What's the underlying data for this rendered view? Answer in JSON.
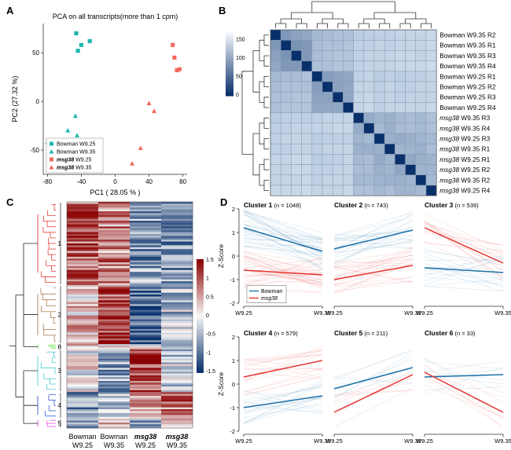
{
  "panels": {
    "A": "A",
    "B": "B",
    "C": "C",
    "D": "D"
  },
  "chart_data": [
    {
      "panel": "A",
      "type": "scatter",
      "title": "PCA on all transcripts(more than 1 cpm)",
      "xlabel": "PC1 ( 28.05 % )",
      "ylabel": "PC2 (27.32 %)",
      "xlim": [
        -85,
        85
      ],
      "ylim": [
        -75,
        80
      ],
      "xticks": [
        "-80",
        "-40",
        "0",
        "40",
        "80"
      ],
      "yticks": [
        "50",
        "0",
        "-50"
      ],
      "colors": {
        "Bowman": "#1fb6b0",
        "msg38": "#f0695c"
      },
      "series": [
        {
          "name": "Bowman W9.25",
          "marker": "square",
          "color": "#1fb6b0",
          "points": [
            [
              -46,
              70
            ],
            [
              -40,
              58
            ],
            [
              -30,
              62
            ],
            [
              -44,
              52
            ]
          ]
        },
        {
          "name": "Bowman W9.35",
          "marker": "triangle",
          "color": "#1fb6b0",
          "points": [
            [
              -47,
              -15
            ],
            [
              -56,
              -30
            ],
            [
              -80,
              -42
            ],
            [
              -45,
              -35
            ]
          ]
        },
        {
          "name": "msg38 W9.25",
          "marker": "square",
          "color": "#f0695c",
          "points": [
            [
              68,
              58
            ],
            [
              70,
              45
            ],
            [
              73,
              32
            ],
            [
              76,
              33
            ]
          ]
        },
        {
          "name": "msg38 W9.35",
          "marker": "triangle",
          "color": "#f0695c",
          "points": [
            [
              40,
              -2
            ],
            [
              46,
              -10
            ],
            [
              30,
              -48
            ],
            [
              20,
              -64
            ]
          ]
        }
      ]
    },
    {
      "panel": "B",
      "type": "heatmap",
      "rows": [
        "Bowman W9.35 R2",
        "Bowman W9.35 R1",
        "Bowman W9.35 R3",
        "Bowman W9.35 R4",
        "Bowman W9.25 R1",
        "Bowman W9.25 R2",
        "Bowman W9.25 R3",
        "Bowman W9.25 R4",
        "msg38 W9.35 R3",
        "msg38 W9.35 R4",
        "msg38 W9.25 R3",
        "msg38 W9.35 R1",
        "msg38 W9.25 R1",
        "msg38 W9.25 R2",
        "msg38 W9.35 R2",
        "msg38 W9.25 R4"
      ],
      "row_prefix": [
        "Bowman",
        "Bowman",
        "Bowman",
        "Bowman",
        "Bowman",
        "Bowman",
        "Bowman",
        "Bowman",
        "msg38",
        "msg38",
        "msg38",
        "msg38",
        "msg38",
        "msg38",
        "msg38",
        "msg38"
      ],
      "row_suffix": [
        "W9.35 R2",
        "W9.35 R1",
        "W9.35 R3",
        "W9.35 R4",
        "W9.25 R1",
        "W9.25 R2",
        "W9.25 R3",
        "W9.25 R4",
        "W9.35 R3",
        "W9.35 R4",
        "W9.25 R3",
        "W9.35 R1",
        "W9.25 R1",
        "W9.25 R2",
        "W9.35 R2",
        "W9.25 R4"
      ],
      "colorbar_ticks": [
        "150",
        "100",
        "50",
        "0"
      ],
      "colorbar_range": [
        0,
        170
      ],
      "color_low": "#08306b",
      "color_high": "#f7fbff",
      "values": [
        [
          0,
          55,
          65,
          70,
          90,
          95,
          100,
          100,
          115,
          120,
          120,
          120,
          125,
          125,
          125,
          130
        ],
        [
          55,
          0,
          50,
          55,
          95,
          100,
          100,
          105,
          120,
          120,
          125,
          120,
          125,
          125,
          125,
          130
        ],
        [
          65,
          50,
          0,
          55,
          95,
          100,
          105,
          105,
          120,
          125,
          125,
          125,
          130,
          130,
          125,
          130
        ],
        [
          70,
          55,
          55,
          0,
          100,
          100,
          105,
          105,
          120,
          125,
          125,
          125,
          130,
          130,
          130,
          135
        ],
        [
          90,
          95,
          95,
          100,
          0,
          60,
          65,
          70,
          120,
          125,
          115,
          120,
          115,
          120,
          120,
          125
        ],
        [
          95,
          100,
          100,
          100,
          60,
          0,
          65,
          70,
          125,
          125,
          120,
          125,
          120,
          120,
          125,
          125
        ],
        [
          100,
          100,
          105,
          105,
          65,
          65,
          0,
          70,
          125,
          130,
          120,
          125,
          120,
          125,
          125,
          125
        ],
        [
          100,
          105,
          105,
          105,
          70,
          70,
          70,
          0,
          125,
          130,
          120,
          125,
          125,
          125,
          125,
          130
        ],
        [
          115,
          120,
          120,
          120,
          120,
          125,
          125,
          125,
          0,
          75,
          85,
          80,
          90,
          95,
          90,
          100
        ],
        [
          120,
          120,
          125,
          125,
          125,
          125,
          130,
          130,
          75,
          0,
          90,
          80,
          95,
          95,
          90,
          100
        ],
        [
          120,
          125,
          125,
          125,
          115,
          120,
          120,
          120,
          85,
          90,
          0,
          80,
          75,
          80,
          85,
          90
        ],
        [
          120,
          120,
          125,
          125,
          120,
          125,
          125,
          125,
          80,
          80,
          80,
          0,
          85,
          85,
          80,
          95
        ],
        [
          125,
          125,
          130,
          130,
          115,
          120,
          120,
          125,
          90,
          95,
          75,
          85,
          0,
          70,
          80,
          85
        ],
        [
          125,
          125,
          130,
          130,
          120,
          120,
          125,
          125,
          95,
          95,
          80,
          85,
          70,
          0,
          85,
          85
        ],
        [
          125,
          125,
          125,
          130,
          120,
          125,
          125,
          125,
          90,
          90,
          85,
          80,
          80,
          85,
          0,
          90
        ],
        [
          130,
          130,
          130,
          135,
          125,
          125,
          125,
          130,
          100,
          100,
          90,
          95,
          85,
          85,
          90,
          0
        ]
      ]
    },
    {
      "panel": "C",
      "type": "heatmap",
      "columns": [
        {
          "l1": "Bowman",
          "l2": "W9.25",
          "italic": false
        },
        {
          "l1": "Bowman",
          "l2": "W9.35",
          "italic": false
        },
        {
          "l1": "msg38",
          "l2": "W9.25",
          "italic": true
        },
        {
          "l1": "msg38",
          "l2": "W9.35",
          "italic": true
        }
      ],
      "clusters": [
        {
          "label": "1",
          "color": "#e0241f",
          "frac": 0.368,
          "means": [
            0.9,
            0.7,
            -0.7,
            -0.8
          ]
        },
        {
          "label": "2",
          "color": "#9a6a3a",
          "frac": 0.261,
          "means": [
            0.3,
            1.0,
            -1.1,
            -0.4
          ]
        },
        {
          "label": "6",
          "color": "#4fd62d",
          "frac": 0.023,
          "means": [
            0.5,
            0.1,
            0.1,
            -0.9
          ]
        },
        {
          "label": "3",
          "color": "#2fc0c8",
          "frac": 0.189,
          "means": [
            0.0,
            -0.6,
            1.1,
            -0.3
          ]
        },
        {
          "label": "4",
          "color": "#1f3fd6",
          "frac": 0.118,
          "means": [
            -0.7,
            -0.4,
            0.5,
            0.8
          ]
        },
        {
          "label": "5",
          "color": "#ea3ad6",
          "frac": 0.041,
          "means": [
            -0.5,
            0.3,
            -0.6,
            0.6
          ]
        }
      ],
      "colorbar_ticks": [
        "1.5",
        "1",
        "0.5",
        "0",
        "-0.5",
        "-1",
        "-1.5"
      ],
      "colorbar_range": [
        -1.5,
        1.5
      ]
    },
    {
      "panel": "D",
      "type": "line",
      "ylabel": "Z-Score",
      "ylim": [
        -2,
        2
      ],
      "yticks": [
        "2",
        "1",
        "0",
        "-1",
        "-2"
      ],
      "categories": [
        "W9.25",
        "W9.35"
      ],
      "legend": [
        "Bowman",
        "msg38"
      ],
      "colors": {
        "Bowman": "#1a6fa8",
        "msg38": "#e5342f"
      },
      "clusters": [
        {
          "title": "Cluster 1",
          "n": "(n = 1048)",
          "bowman": [
            1.2,
            0.2
          ],
          "msg38": [
            -0.6,
            -0.8
          ]
        },
        {
          "title": "Cluster 2",
          "n": "(n = 743)",
          "bowman": [
            0.3,
            1.1
          ],
          "msg38": [
            -1.0,
            -0.4
          ]
        },
        {
          "title": "Cluster 3",
          "n": "(n = 539)",
          "bowman": [
            -0.5,
            -0.7
          ],
          "msg38": [
            1.2,
            -0.3
          ]
        },
        {
          "title": "Cluster 4",
          "n": "(n = 579)",
          "bowman": [
            -1.0,
            -0.5
          ],
          "msg38": [
            0.3,
            1.0
          ]
        },
        {
          "title": "Cluster 5",
          "n": "(n = 211)",
          "bowman": [
            -0.2,
            0.7
          ],
          "msg38": [
            -1.2,
            0.4
          ]
        },
        {
          "title": "Cluster 6",
          "n": "(n = 33)",
          "bowman": [
            0.3,
            0.4
          ],
          "msg38": [
            0.5,
            -1.2
          ]
        }
      ]
    }
  ]
}
